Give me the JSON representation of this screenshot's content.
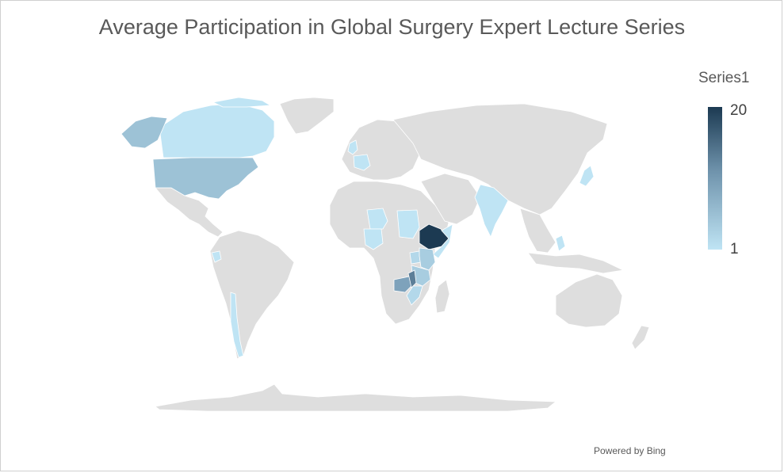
{
  "title": "Average Participation in Global Surgery Expert Lecture Series",
  "legend": {
    "series_name": "Series1",
    "max_label": "20",
    "min_label": "1",
    "color_high": "#1c3a52",
    "color_mid": "#6f93ac",
    "color_low": "#bfe4f4"
  },
  "base_land_color": "#dedede",
  "attribution": "Powered by Bing",
  "regions": [
    {
      "name": "Ethiopia",
      "level": 20,
      "color": "#1c3a52"
    },
    {
      "name": "Malawi",
      "level": 12,
      "color": "#5d7f98"
    },
    {
      "name": "Zambia",
      "level": 9,
      "color": "#7ea2bb"
    },
    {
      "name": "United States",
      "level": 7,
      "color": "#9dc2d6"
    },
    {
      "name": "Alaska",
      "level": 7,
      "color": "#9dc2d6"
    },
    {
      "name": "Kenya",
      "level": 5,
      "color": "#a8cde0"
    },
    {
      "name": "Tanzania",
      "level": 5,
      "color": "#a8cde0"
    },
    {
      "name": "Uganda",
      "level": 4,
      "color": "#b3d8ea"
    },
    {
      "name": "Mozambique",
      "level": 4,
      "color": "#b3d8ea"
    },
    {
      "name": "Canada",
      "level": 1,
      "color": "#bfe4f4"
    },
    {
      "name": "India",
      "level": 1,
      "color": "#bfe4f4"
    },
    {
      "name": "Nigeria",
      "level": 1,
      "color": "#bfe4f4"
    },
    {
      "name": "Sudan",
      "level": 1,
      "color": "#bfe4f4"
    },
    {
      "name": "Niger",
      "level": 1,
      "color": "#bfe4f4"
    },
    {
      "name": "Somalia",
      "level": 1,
      "color": "#bfe4f4"
    },
    {
      "name": "Chile",
      "level": 1,
      "color": "#bfe4f4"
    },
    {
      "name": "Japan",
      "level": 1,
      "color": "#bfe4f4"
    },
    {
      "name": "France",
      "level": 1,
      "color": "#bfe4f4"
    },
    {
      "name": "United Kingdom",
      "level": 1,
      "color": "#bfe4f4"
    },
    {
      "name": "Philippines",
      "level": 1,
      "color": "#bfe4f4"
    },
    {
      "name": "Ecuador",
      "level": 1,
      "color": "#bfe4f4"
    }
  ]
}
